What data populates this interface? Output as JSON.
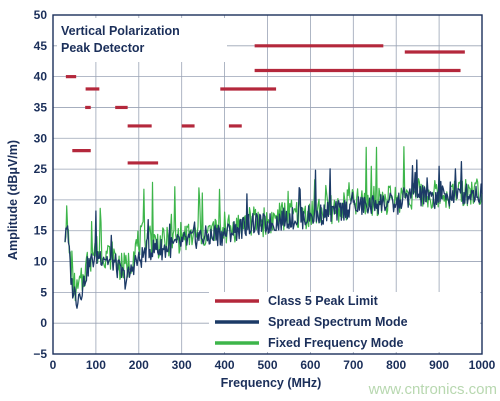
{
  "chart_data": {
    "type": "line",
    "inset_title": [
      "Vertical Polarization",
      "Peak Detector"
    ],
    "xlabel": "Frequency (MHz)",
    "ylabel": "Amplitude (dBμV/m)",
    "xlim": [
      0,
      1000
    ],
    "ylim": [
      -5,
      50
    ],
    "x_ticks": [
      0,
      100,
      200,
      300,
      400,
      500,
      600,
      700,
      800,
      900,
      1000
    ],
    "y_ticks": [
      -5,
      0,
      5,
      10,
      15,
      20,
      25,
      30,
      35,
      40,
      45,
      50
    ],
    "grid": true,
    "legend_position": "bottom-right",
    "colors": {
      "limit": "#b4283c",
      "spread": "#1c3a66",
      "fixed": "#3db54a",
      "axis_text": "#1b2f5a",
      "grid": "#9aa3b5"
    },
    "series": [
      {
        "name": "Class 5 Peak Limit",
        "kind": "segments",
        "segments": [
          {
            "x": [
              30,
              54
            ],
            "y": 40
          },
          {
            "x": [
              45,
              88
            ],
            "y": 28
          },
          {
            "x": [
              75,
              88
            ],
            "y": 35
          },
          {
            "x": [
              76,
              108
            ],
            "y": 38
          },
          {
            "x": [
              145,
              174
            ],
            "y": 35
          },
          {
            "x": [
              174,
              230
            ],
            "y": 32
          },
          {
            "x": [
              174,
              245
            ],
            "y": 26
          },
          {
            "x": [
              300,
              330
            ],
            "y": 32
          },
          {
            "x": [
              390,
              520
            ],
            "y": 38
          },
          {
            "x": [
              410,
              440
            ],
            "y": 32
          },
          {
            "x": [
              470,
              770
            ],
            "y": 45
          },
          {
            "x": [
              470,
              950
            ],
            "y": 41
          },
          {
            "x": [
              820,
              960
            ],
            "y": 44
          }
        ]
      },
      {
        "name": "Spread Spectrum Mode",
        "kind": "line",
        "x": [
          28,
          32,
          38,
          44,
          50,
          56,
          62,
          70,
          80,
          90,
          100,
          110,
          120,
          130,
          140,
          150,
          160,
          170,
          180,
          190,
          200,
          210,
          220,
          240,
          260,
          280,
          300,
          320,
          340,
          360,
          380,
          400,
          420,
          440,
          460,
          480,
          500,
          520,
          540,
          560,
          580,
          600,
          620,
          640,
          660,
          680,
          700,
          720,
          740,
          760,
          780,
          800,
          820,
          840,
          860,
          880,
          900,
          920,
          940,
          960,
          980,
          1000
        ],
        "y": [
          14,
          16,
          11,
          6,
          5,
          4,
          5,
          6,
          9,
          10,
          11,
          11,
          11,
          10,
          10,
          9,
          8,
          7,
          8,
          10,
          10,
          11,
          12,
          12,
          12,
          12.5,
          13,
          13.5,
          14,
          14,
          14,
          14.5,
          15,
          15.5,
          16,
          16,
          16,
          16.5,
          17,
          17,
          17,
          17.5,
          17.5,
          18,
          18,
          18.5,
          19,
          19,
          19,
          19.5,
          19.5,
          19,
          20.5,
          20.5,
          20.5,
          20,
          20.5,
          20.5,
          20.5,
          21,
          21,
          21
        ]
      },
      {
        "name": "Fixed Frequency Mode",
        "kind": "line",
        "x": [
          28,
          32,
          38,
          44,
          50,
          56,
          62,
          70,
          80,
          90,
          100,
          110,
          120,
          130,
          140,
          150,
          160,
          170,
          180,
          190,
          200,
          210,
          220,
          240,
          260,
          280,
          300,
          320,
          340,
          360,
          380,
          400,
          420,
          440,
          460,
          480,
          500,
          520,
          540,
          560,
          580,
          600,
          620,
          640,
          660,
          680,
          700,
          720,
          740,
          760,
          780,
          800,
          820,
          840,
          860,
          880,
          900,
          920,
          940,
          960,
          980,
          1000
        ],
        "y": [
          15,
          17,
          12,
          7,
          6,
          5,
          6,
          7,
          10,
          11,
          12,
          11.5,
          11.5,
          11,
          11,
          10,
          9,
          9,
          10,
          12,
          13,
          14,
          14,
          13,
          13,
          13.5,
          14,
          14,
          14.5,
          14.5,
          15,
          15,
          15.5,
          16,
          16.5,
          16.5,
          16.5,
          17,
          17.5,
          17.5,
          17.5,
          18,
          18,
          18.5,
          18.5,
          19,
          19.5,
          19.5,
          19.5,
          20,
          20,
          20,
          21,
          21,
          21,
          20.5,
          21,
          21,
          21,
          21.5,
          21.5,
          21.5
        ]
      }
    ]
  },
  "watermark": "www.cntronics.com"
}
